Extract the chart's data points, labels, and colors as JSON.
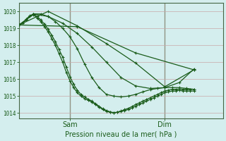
{
  "title": "Pression niveau de la mer( hPa )",
  "ylim": [
    1013.7,
    1020.5
  ],
  "xlim": [
    0,
    56
  ],
  "xtick_positions": [
    14,
    40
  ],
  "xtick_labels": [
    "Sam",
    "Dim"
  ],
  "bg_color": "#d4eeee",
  "grid_color_y": "#c8a8a8",
  "grid_color_x": "#d8b8b8",
  "vline_color": "#446644",
  "line_color": "#1a5c1a",
  "marker": "+",
  "markersize": 3.5,
  "linewidth": 0.9,
  "series": [
    {
      "x": [
        0,
        1,
        2,
        3,
        4,
        5,
        6,
        7,
        8,
        9,
        10,
        11,
        12,
        13,
        14,
        15,
        16,
        17,
        18,
        19,
        20,
        21,
        22,
        23,
        24,
        25,
        26,
        27,
        28,
        29,
        30,
        31,
        32,
        33,
        34,
        35,
        36,
        37,
        38,
        39,
        40,
        41,
        42,
        43,
        44,
        45,
        46,
        47,
        48
      ],
      "y": [
        1019.2,
        1019.3,
        1019.5,
        1019.7,
        1019.8,
        1019.6,
        1019.4,
        1019.1,
        1018.8,
        1018.4,
        1018.0,
        1017.5,
        1017.0,
        1016.4,
        1015.9,
        1015.5,
        1015.2,
        1015.0,
        1014.85,
        1014.75,
        1014.65,
        1014.5,
        1014.35,
        1014.2,
        1014.1,
        1014.05,
        1014.0,
        1014.05,
        1014.1,
        1014.15,
        1014.2,
        1014.3,
        1014.4,
        1014.5,
        1014.6,
        1014.7,
        1014.8,
        1014.9,
        1015.0,
        1015.1,
        1015.2,
        1015.25,
        1015.3,
        1015.3,
        1015.35,
        1015.3,
        1015.3,
        1015.3,
        1015.3
      ]
    },
    {
      "x": [
        0,
        1,
        2,
        3,
        4,
        5,
        6,
        7,
        8,
        9,
        10,
        11,
        12,
        13,
        14,
        15,
        16,
        17,
        18,
        19,
        20,
        21,
        22,
        23,
        24,
        25,
        26,
        27,
        28,
        29,
        30,
        31,
        32,
        33,
        34,
        35,
        36,
        37,
        38,
        39,
        40,
        41,
        42,
        43,
        44,
        45,
        46,
        47,
        48
      ],
      "y": [
        1019.2,
        1019.3,
        1019.55,
        1019.75,
        1019.85,
        1019.7,
        1019.5,
        1019.25,
        1018.95,
        1018.6,
        1018.2,
        1017.75,
        1017.3,
        1016.7,
        1016.15,
        1015.7,
        1015.35,
        1015.1,
        1014.95,
        1014.82,
        1014.7,
        1014.55,
        1014.4,
        1014.25,
        1014.15,
        1014.07,
        1014.02,
        1014.05,
        1014.12,
        1014.2,
        1014.28,
        1014.38,
        1014.5,
        1014.6,
        1014.7,
        1014.8,
        1014.9,
        1015.0,
        1015.1,
        1015.2,
        1015.3,
        1015.35,
        1015.4,
        1015.4,
        1015.42,
        1015.4,
        1015.4,
        1015.4,
        1015.4
      ]
    },
    {
      "x": [
        0,
        2,
        4,
        6,
        8,
        10,
        12,
        14,
        16,
        18,
        20,
        22,
        24,
        26,
        28,
        30,
        32,
        34,
        36,
        38,
        40,
        42,
        44,
        46,
        48
      ],
      "y": [
        1019.2,
        1019.5,
        1019.85,
        1019.85,
        1019.7,
        1019.4,
        1019.0,
        1018.5,
        1017.8,
        1016.9,
        1016.1,
        1015.5,
        1015.1,
        1015.0,
        1014.95,
        1015.0,
        1015.1,
        1015.25,
        1015.38,
        1015.45,
        1015.5,
        1015.5,
        1015.5,
        1015.45,
        1015.4
      ]
    },
    {
      "x": [
        0,
        4,
        8,
        12,
        16,
        20,
        24,
        28,
        32,
        36,
        40,
        44,
        48
      ],
      "y": [
        1019.2,
        1019.85,
        1019.7,
        1019.3,
        1018.7,
        1017.9,
        1017.0,
        1016.1,
        1015.6,
        1015.45,
        1015.5,
        1015.8,
        1016.6
      ]
    },
    {
      "x": [
        0,
        8,
        16,
        24,
        32,
        40,
        48
      ],
      "y": [
        1019.2,
        1020.0,
        1019.15,
        1018.1,
        1016.95,
        1015.55,
        1016.55
      ]
    },
    {
      "x": [
        0,
        16,
        32,
        48
      ],
      "y": [
        1019.2,
        1019.1,
        1017.55,
        1016.55
      ]
    }
  ]
}
